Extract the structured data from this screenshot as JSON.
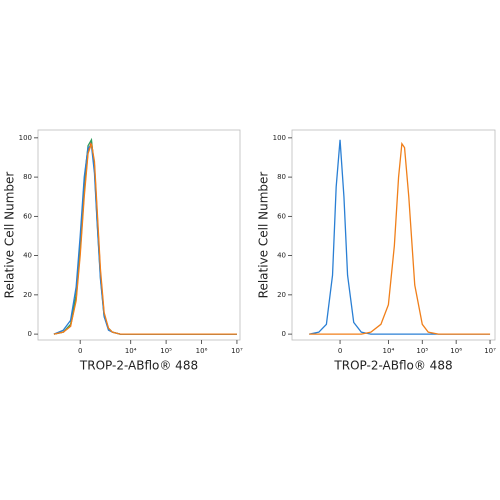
{
  "chart_data": [
    {
      "type": "histogram-line",
      "x_label": "TROP-2-ABflo® 488",
      "y_label": "Relative Cell Number",
      "xscale": "biexponential",
      "xlim": [
        -5800,
        12200000
      ],
      "ylim": [
        -3,
        104
      ],
      "xticks": [
        0,
        {
          "value": 10000,
          "label": "10⁴"
        },
        {
          "value": 100000,
          "label": "10⁵"
        },
        {
          "value": 1000000,
          "label": "10⁶"
        },
        {
          "value": 10000000,
          "label": "10⁷"
        }
      ],
      "yticks": [
        0,
        20,
        40,
        60,
        80,
        100
      ],
      "x": [
        -2000,
        -1000,
        -500,
        -200,
        0,
        200,
        400,
        600,
        800,
        1000,
        1300,
        1700,
        2300,
        3000,
        5000,
        10000,
        100000,
        1000000,
        10000000
      ],
      "series": [
        {
          "color": "#e8412b",
          "values": [
            0,
            1,
            4,
            18,
            42,
            72,
            93,
            98,
            86,
            62,
            31,
            10,
            3,
            1,
            0,
            0,
            0,
            0,
            0
          ]
        },
        {
          "color": "#2e9e5b",
          "values": [
            0,
            1,
            5,
            20,
            46,
            78,
            96,
            99,
            84,
            58,
            29,
            9,
            3,
            1,
            0,
            0,
            0,
            0,
            0
          ]
        },
        {
          "color": "#2a7fd4",
          "values": [
            0,
            2,
            7,
            24,
            50,
            80,
            95,
            96,
            82,
            57,
            28,
            9,
            2,
            1,
            0,
            0,
            0,
            0,
            0
          ]
        },
        {
          "color": "#f07f1a",
          "values": [
            0,
            1,
            4,
            17,
            40,
            70,
            92,
            97,
            88,
            64,
            33,
            11,
            3,
            1,
            0,
            0,
            0,
            0,
            0
          ]
        }
      ]
    },
    {
      "type": "histogram-line",
      "x_label": "TROP-2-ABflo® 488",
      "y_label": "Relative Cell Number",
      "xscale": "biexponential",
      "xlim": [
        -9800,
        14000000
      ],
      "ylim": [
        -3,
        104
      ],
      "xticks": [
        0,
        {
          "value": 10000,
          "label": "10⁴"
        },
        {
          "value": 100000,
          "label": "10⁵"
        },
        {
          "value": 1000000,
          "label": "10⁶"
        },
        {
          "value": 10000000,
          "label": "10⁷"
        }
      ],
      "yticks": [
        0,
        20,
        40,
        60,
        80,
        100
      ],
      "x": [
        -3000,
        -1500,
        -800,
        -400,
        -200,
        0,
        200,
        400,
        800,
        1500,
        3000,
        6000,
        10000,
        15000,
        20000,
        25000,
        30000,
        40000,
        60000,
        100000,
        150000,
        300000,
        1000000,
        10000000
      ],
      "series": [
        {
          "color": "#2a7fd4",
          "values": [
            0,
            1,
            5,
            30,
            75,
            99,
            70,
            30,
            6,
            1,
            0,
            0,
            0,
            0,
            0,
            0,
            0,
            0,
            0,
            0,
            0,
            0,
            0,
            0
          ]
        },
        {
          "color": "#f07f1a",
          "values": [
            0,
            0,
            0,
            0,
            0,
            0,
            0,
            0,
            0,
            0,
            1,
            5,
            15,
            45,
            80,
            97,
            95,
            70,
            25,
            5,
            1,
            0,
            0,
            0
          ]
        }
      ]
    }
  ]
}
